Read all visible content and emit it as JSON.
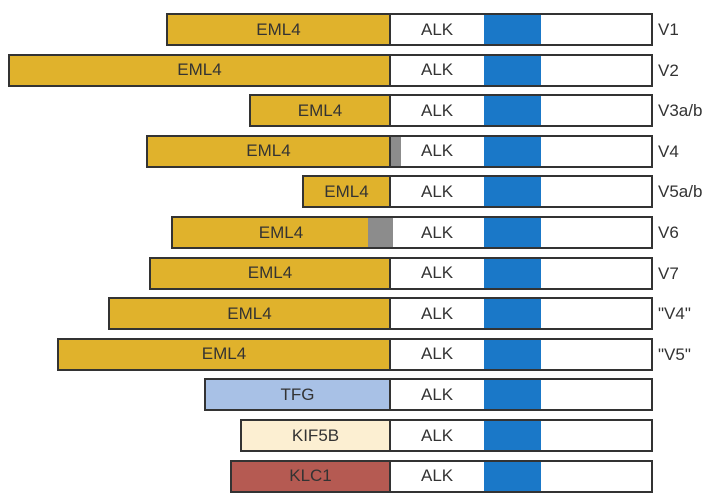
{
  "rows": [
    {
      "partner": "EML4",
      "kinase": "ALK",
      "variant": "V1"
    },
    {
      "partner": "EML4",
      "kinase": "ALK",
      "variant": "V2"
    },
    {
      "partner": "EML4",
      "kinase": "ALK",
      "variant": "V3a/b"
    },
    {
      "partner": "EML4",
      "kinase": "ALK",
      "variant": "V4"
    },
    {
      "partner": "EML4",
      "kinase": "ALK",
      "variant": "V5a/b"
    },
    {
      "partner": "EML4",
      "kinase": "ALK",
      "variant": "V6"
    },
    {
      "partner": "EML4",
      "kinase": "ALK",
      "variant": "V7"
    },
    {
      "partner": "EML4",
      "kinase": "ALK",
      "variant": "\"V4\""
    },
    {
      "partner": "EML4",
      "kinase": "ALK",
      "variant": "\"V5\""
    },
    {
      "partner": "TFG",
      "kinase": "ALK",
      "variant": null
    },
    {
      "partner": "KIF5B",
      "kinase": "ALK",
      "variant": null
    },
    {
      "partner": "KLC1",
      "kinase": "ALK",
      "variant": null
    }
  ]
}
